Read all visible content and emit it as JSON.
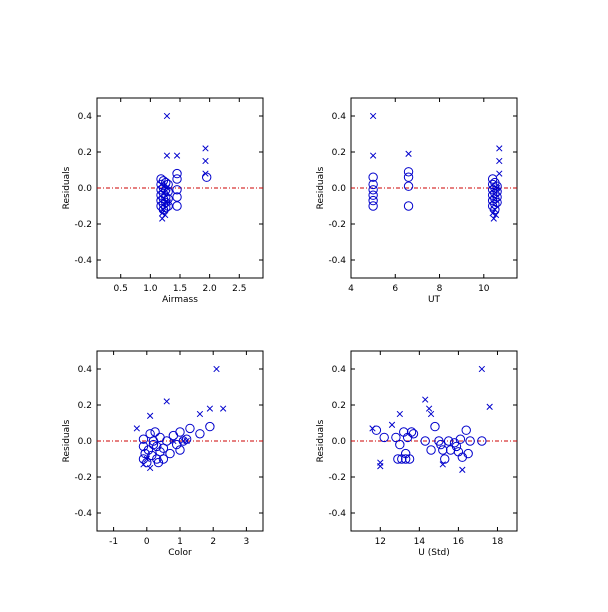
{
  "chart_data": [
    {
      "type": "scatter",
      "xlabel": "Airmass",
      "ylabel": "Residuals",
      "xlim": [
        0.1,
        2.9
      ],
      "ylim": [
        -0.5,
        0.5
      ],
      "xticks": [
        0.5,
        1.0,
        1.5,
        2.0,
        2.5
      ],
      "xtick_labels": [
        "0.5",
        "1.0",
        "1.5",
        "2.0",
        "2.5"
      ],
      "yticks": [
        -0.4,
        -0.2,
        0.0,
        0.2,
        0.4
      ],
      "ytick_labels": [
        "-0.4",
        "-0.2",
        "0.0",
        "0.2",
        "0.4"
      ],
      "zero_line": 0.0,
      "series": [
        {
          "marker": "circle",
          "points": [
            [
              1.18,
              0.05
            ],
            [
              1.18,
              0.02
            ],
            [
              1.18,
              -0.01
            ],
            [
              1.18,
              -0.04
            ],
            [
              1.18,
              -0.07
            ],
            [
              1.18,
              -0.1
            ],
            [
              1.22,
              0.04
            ],
            [
              1.22,
              0.0
            ],
            [
              1.22,
              -0.03
            ],
            [
              1.22,
              -0.06
            ],
            [
              1.22,
              -0.09
            ],
            [
              1.22,
              -0.12
            ],
            [
              1.26,
              0.03
            ],
            [
              1.26,
              -0.01
            ],
            [
              1.26,
              -0.05
            ],
            [
              1.26,
              -0.08
            ],
            [
              1.26,
              -0.11
            ],
            [
              1.3,
              0.02
            ],
            [
              1.3,
              -0.02
            ],
            [
              1.3,
              -0.06
            ],
            [
              1.3,
              -0.1
            ],
            [
              1.45,
              0.08
            ],
            [
              1.45,
              0.05
            ],
            [
              1.45,
              -0.01
            ],
            [
              1.45,
              -0.05
            ],
            [
              1.45,
              -0.1
            ],
            [
              1.95,
              0.06
            ]
          ]
        },
        {
          "marker": "x",
          "points": [
            [
              1.28,
              0.4
            ],
            [
              1.28,
              0.18
            ],
            [
              1.45,
              0.18
            ],
            [
              1.93,
              0.22
            ],
            [
              1.93,
              0.15
            ],
            [
              1.93,
              0.08
            ],
            [
              1.2,
              -0.14
            ],
            [
              1.2,
              -0.17
            ],
            [
              1.22,
              -0.12
            ],
            [
              1.25,
              -0.15
            ],
            [
              1.28,
              0.0
            ],
            [
              1.3,
              -0.08
            ]
          ]
        }
      ]
    },
    {
      "type": "scatter",
      "xlabel": "UT",
      "ylabel": "Residuals",
      "xlim": [
        4.0,
        11.5
      ],
      "ylim": [
        -0.5,
        0.5
      ],
      "xticks": [
        4,
        6,
        8,
        10
      ],
      "xtick_labels": [
        "4",
        "6",
        "8",
        "10"
      ],
      "yticks": [
        -0.4,
        -0.2,
        0.0,
        0.2,
        0.4
      ],
      "ytick_labels": [
        "-0.4",
        "-0.2",
        "0.0",
        "0.2",
        "0.4"
      ],
      "zero_line": 0.0,
      "series": [
        {
          "marker": "circle",
          "points": [
            [
              5.0,
              0.06
            ],
            [
              5.0,
              0.02
            ],
            [
              5.0,
              -0.01
            ],
            [
              5.0,
              -0.04
            ],
            [
              5.0,
              -0.07
            ],
            [
              5.0,
              -0.1
            ],
            [
              6.6,
              0.09
            ],
            [
              6.6,
              0.06
            ],
            [
              6.6,
              0.01
            ],
            [
              6.6,
              -0.1
            ],
            [
              10.4,
              0.05
            ],
            [
              10.4,
              0.02
            ],
            [
              10.4,
              -0.01
            ],
            [
              10.4,
              -0.04
            ],
            [
              10.4,
              -0.07
            ],
            [
              10.4,
              -0.1
            ],
            [
              10.5,
              0.03
            ],
            [
              10.5,
              0.0
            ],
            [
              10.5,
              -0.03
            ],
            [
              10.5,
              -0.06
            ],
            [
              10.5,
              -0.09
            ],
            [
              10.5,
              -0.12
            ],
            [
              10.6,
              0.01
            ],
            [
              10.6,
              -0.02
            ],
            [
              10.6,
              -0.05
            ],
            [
              10.6,
              -0.08
            ]
          ]
        },
        {
          "marker": "x",
          "points": [
            [
              5.0,
              0.4
            ],
            [
              5.0,
              0.18
            ],
            [
              6.6,
              0.19
            ],
            [
              10.7,
              0.22
            ],
            [
              10.7,
              0.15
            ],
            [
              10.7,
              0.08
            ],
            [
              10.4,
              -0.14
            ],
            [
              10.45,
              -0.17
            ],
            [
              10.5,
              -0.12
            ],
            [
              10.55,
              -0.15
            ],
            [
              10.6,
              0.0
            ]
          ]
        }
      ]
    },
    {
      "type": "scatter",
      "xlabel": "Color",
      "ylabel": "Residuals",
      "xlim": [
        -1.5,
        3.5
      ],
      "ylim": [
        -0.5,
        0.5
      ],
      "xticks": [
        -1,
        0,
        1,
        2,
        3
      ],
      "xtick_labels": [
        "-1",
        "0",
        "1",
        "2",
        "3"
      ],
      "yticks": [
        -0.4,
        -0.2,
        0.0,
        0.2,
        0.4
      ],
      "ytick_labels": [
        "-0.4",
        "-0.2",
        "0.0",
        "0.2",
        "0.4"
      ],
      "zero_line": 0.0,
      "series": [
        {
          "marker": "circle",
          "points": [
            [
              -0.1,
              0.01
            ],
            [
              -0.1,
              -0.03
            ],
            [
              -0.1,
              -0.1
            ],
            [
              -0.05,
              -0.07
            ],
            [
              0.0,
              -0.12
            ],
            [
              0.05,
              -0.05
            ],
            [
              0.1,
              0.04
            ],
            [
              0.15,
              -0.08
            ],
            [
              0.2,
              0.0
            ],
            [
              0.25,
              0.05
            ],
            [
              0.3,
              -0.03
            ],
            [
              0.3,
              -0.1
            ],
            [
              0.4,
              0.02
            ],
            [
              0.4,
              -0.06
            ],
            [
              0.5,
              -0.04
            ],
            [
              0.5,
              -0.1
            ],
            [
              0.6,
              0.0
            ],
            [
              0.7,
              -0.07
            ],
            [
              0.8,
              0.03
            ],
            [
              0.9,
              -0.02
            ],
            [
              1.0,
              0.05
            ],
            [
              1.0,
              -0.05
            ],
            [
              1.1,
              0.0
            ],
            [
              1.2,
              0.01
            ],
            [
              1.3,
              0.07
            ],
            [
              1.6,
              0.04
            ],
            [
              1.9,
              0.08
            ],
            [
              0.2,
              -0.02
            ],
            [
              0.35,
              -0.12
            ]
          ]
        },
        {
          "marker": "x",
          "points": [
            [
              -0.3,
              0.07
            ],
            [
              -0.1,
              -0.13
            ],
            [
              0.0,
              -0.1
            ],
            [
              0.1,
              -0.15
            ],
            [
              0.1,
              0.14
            ],
            [
              0.6,
              0.22
            ],
            [
              0.8,
              0.0
            ],
            [
              1.1,
              0.0
            ],
            [
              1.2,
              0.0
            ],
            [
              1.6,
              0.15
            ],
            [
              1.9,
              0.18
            ],
            [
              2.1,
              0.4
            ],
            [
              2.3,
              0.18
            ]
          ]
        }
      ]
    },
    {
      "type": "scatter",
      "xlabel": "U (Std)",
      "ylabel": "Residuals",
      "xlim": [
        10.5,
        19.0
      ],
      "ylim": [
        -0.5,
        0.5
      ],
      "xticks": [
        12,
        14,
        16,
        18
      ],
      "xtick_labels": [
        "12",
        "14",
        "16",
        "18"
      ],
      "yticks": [
        -0.4,
        -0.2,
        0.0,
        0.2,
        0.4
      ],
      "ytick_labels": [
        "-0.4",
        "-0.2",
        "0.0",
        "0.2",
        "0.4"
      ],
      "zero_line": 0.0,
      "series": [
        {
          "marker": "circle",
          "points": [
            [
              11.8,
              0.06
            ],
            [
              12.2,
              0.02
            ],
            [
              12.8,
              0.02
            ],
            [
              12.9,
              -0.1
            ],
            [
              13.0,
              -0.02
            ],
            [
              13.1,
              -0.1
            ],
            [
              13.2,
              0.05
            ],
            [
              13.3,
              -0.07
            ],
            [
              13.3,
              -0.1
            ],
            [
              13.4,
              0.02
            ],
            [
              13.5,
              -0.1
            ],
            [
              13.6,
              0.05
            ],
            [
              13.7,
              0.04
            ],
            [
              14.3,
              0.0
            ],
            [
              14.6,
              -0.05
            ],
            [
              14.8,
              0.08
            ],
            [
              15.0,
              0.0
            ],
            [
              15.1,
              -0.02
            ],
            [
              15.2,
              -0.05
            ],
            [
              15.3,
              -0.1
            ],
            [
              15.5,
              0.0
            ],
            [
              15.6,
              -0.05
            ],
            [
              15.8,
              -0.01
            ],
            [
              15.9,
              -0.03
            ],
            [
              16.0,
              -0.06
            ],
            [
              16.1,
              0.01
            ],
            [
              16.2,
              -0.09
            ],
            [
              16.4,
              0.06
            ],
            [
              16.5,
              -0.07
            ],
            [
              16.6,
              0.0
            ],
            [
              17.2,
              0.0
            ]
          ]
        },
        {
          "marker": "x",
          "points": [
            [
              11.6,
              0.07
            ],
            [
              12.0,
              -0.12
            ],
            [
              12.0,
              -0.14
            ],
            [
              12.6,
              0.09
            ],
            [
              13.0,
              0.15
            ],
            [
              14.3,
              0.23
            ],
            [
              14.5,
              0.18
            ],
            [
              14.6,
              0.15
            ],
            [
              15.2,
              -0.13
            ],
            [
              16.2,
              -0.16
            ],
            [
              17.2,
              0.4
            ],
            [
              17.6,
              0.19
            ]
          ]
        }
      ]
    }
  ]
}
